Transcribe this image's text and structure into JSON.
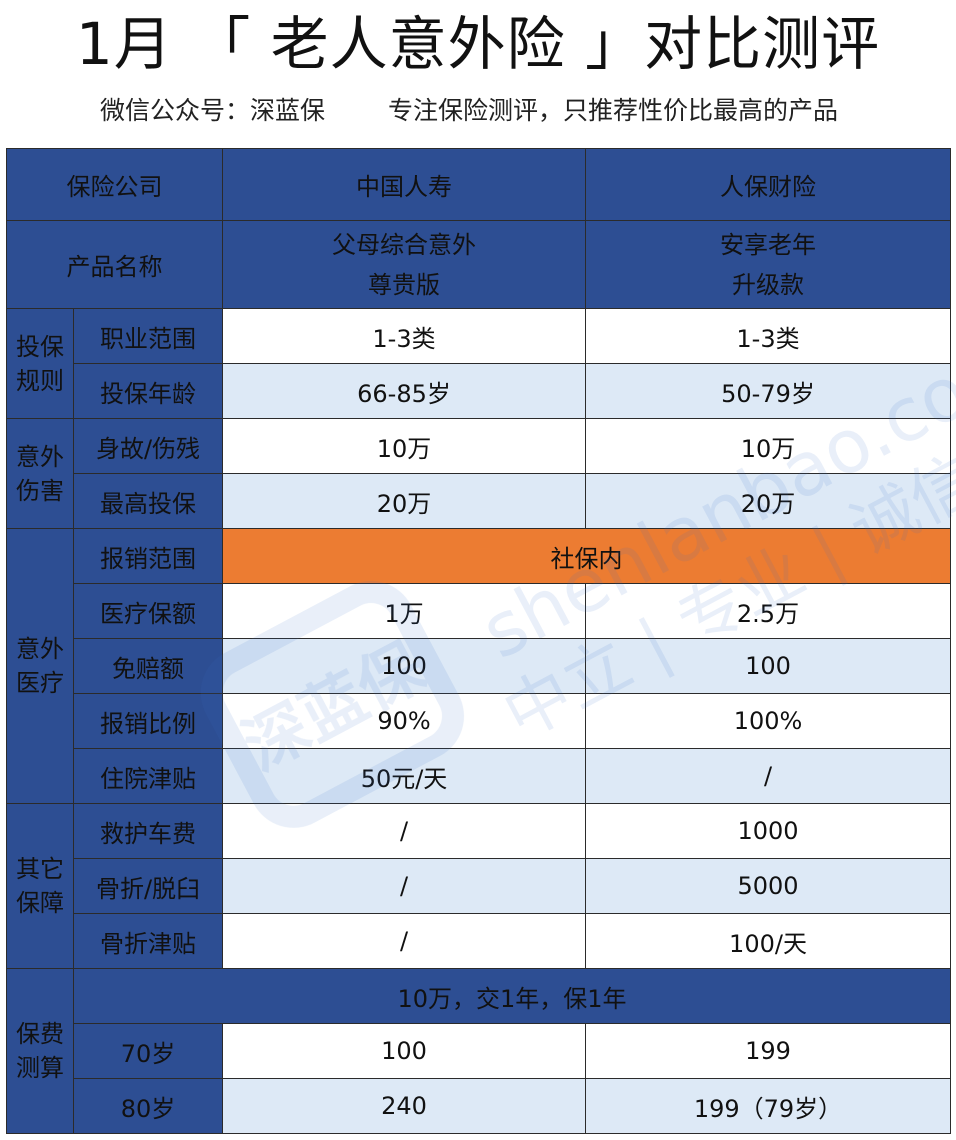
{
  "title": "1月 「 老人意外险 」对比测评",
  "subtitle": {
    "left": "微信公众号：深蓝保",
    "right": "专注保险测评，只推荐性价比最高的产品"
  },
  "header": {
    "company_label": "保险公司",
    "company_a": "中国人寿",
    "company_b": "人保财险",
    "product_label": "产品名称",
    "product_a_line1": "父母综合意外",
    "product_a_line2": "尊贵版",
    "product_b_line1": "安享老年",
    "product_b_line2": "升级款"
  },
  "sections": {
    "rules": {
      "line1": "投保",
      "line2": "规则"
    },
    "injury": {
      "line1": "意外",
      "line2": "伤害"
    },
    "medical": {
      "line1": "意外",
      "line2": "医疗"
    },
    "other": {
      "line1": "其它",
      "line2": "保障"
    },
    "premium": {
      "line1": "保费",
      "line2": "测算"
    }
  },
  "rows": {
    "occupation": {
      "label": "职业范围",
      "a": "1-3类",
      "b": "1-3类"
    },
    "age": {
      "label": "投保年龄",
      "a": "66-85岁",
      "b": "50-79岁"
    },
    "death": {
      "label": "身故/伤残",
      "a": "10万",
      "b": "10万"
    },
    "max": {
      "label": "最高投保",
      "a": "20万",
      "b": "20万"
    },
    "scope": {
      "label": "报销范围",
      "merged": "社保内"
    },
    "med_amount": {
      "label": "医疗保额",
      "a": "1万",
      "b": "2.5万"
    },
    "deductible": {
      "label": "免赔额",
      "a": "100",
      "b": "100"
    },
    "ratio": {
      "label": "报销比例",
      "a": "90%",
      "b": "100%"
    },
    "hospital": {
      "label": "住院津贴",
      "a": "50元/天",
      "b": "/"
    },
    "ambulance": {
      "label": "救护车费",
      "a": "/",
      "b": "1000"
    },
    "fracture": {
      "label": "骨折/脱臼",
      "a": "/",
      "b": "5000"
    },
    "fracture_allow": {
      "label": "骨折津贴",
      "a": "/",
      "b": "100/天"
    },
    "premium_banner": "10万，交1年，保1年",
    "age70": {
      "label": "70岁",
      "a": "100",
      "b": "199"
    },
    "age80": {
      "label": "80岁",
      "a": "240",
      "b": "199（79岁）"
    }
  },
  "watermark": {
    "site": "shenlanbao.com",
    "slogan": "中立 | 专业 | 诚信",
    "logo_text": "深蓝保"
  },
  "colors": {
    "header_blue": "#2d4e93",
    "section_gold": "#f5b82e",
    "alt_row": "#dde9f6",
    "highlight_orange": "#ec7c32"
  }
}
